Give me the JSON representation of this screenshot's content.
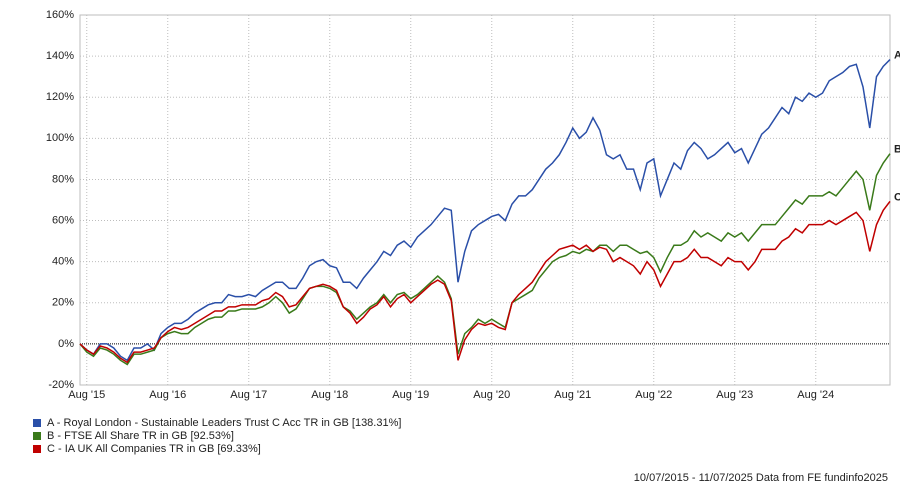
{
  "chart_data": {
    "type": "line",
    "x": [
      "2015-07",
      "2015-08",
      "2015-09",
      "2015-10",
      "2015-11",
      "2015-12",
      "2016-01",
      "2016-02",
      "2016-03",
      "2016-04",
      "2016-05",
      "2016-06",
      "2016-07",
      "2016-08",
      "2016-09",
      "2016-10",
      "2016-11",
      "2016-12",
      "2017-01",
      "2017-02",
      "2017-03",
      "2017-04",
      "2017-05",
      "2017-06",
      "2017-07",
      "2017-08",
      "2017-09",
      "2017-10",
      "2017-11",
      "2017-12",
      "2018-01",
      "2018-02",
      "2018-03",
      "2018-04",
      "2018-05",
      "2018-06",
      "2018-07",
      "2018-08",
      "2018-09",
      "2018-10",
      "2018-11",
      "2018-12",
      "2019-01",
      "2019-02",
      "2019-03",
      "2019-04",
      "2019-05",
      "2019-06",
      "2019-07",
      "2019-08",
      "2019-09",
      "2019-10",
      "2019-11",
      "2019-12",
      "2020-01",
      "2020-02",
      "2020-03",
      "2020-04",
      "2020-05",
      "2020-06",
      "2020-07",
      "2020-08",
      "2020-09",
      "2020-10",
      "2020-11",
      "2020-12",
      "2021-01",
      "2021-02",
      "2021-03",
      "2021-04",
      "2021-05",
      "2021-06",
      "2021-07",
      "2021-08",
      "2021-09",
      "2021-10",
      "2021-11",
      "2021-12",
      "2022-01",
      "2022-02",
      "2022-03",
      "2022-04",
      "2022-05",
      "2022-06",
      "2022-07",
      "2022-08",
      "2022-09",
      "2022-10",
      "2022-11",
      "2022-12",
      "2023-01",
      "2023-02",
      "2023-03",
      "2023-04",
      "2023-05",
      "2023-06",
      "2023-07",
      "2023-08",
      "2023-09",
      "2023-10",
      "2023-11",
      "2023-12",
      "2024-01",
      "2024-02",
      "2024-03",
      "2024-04",
      "2024-05",
      "2024-06",
      "2024-07",
      "2024-08",
      "2024-09",
      "2024-10",
      "2024-11",
      "2024-12",
      "2025-01",
      "2025-02",
      "2025-03",
      "2025-04",
      "2025-05",
      "2025-06",
      "2025-07"
    ],
    "series": [
      {
        "name": "A - Royal London - Sustainable Leaders Trust C Acc TR in GB [138.31%]",
        "label": "A",
        "color": "#2a4fa8",
        "values": [
          0,
          -3,
          -5,
          0,
          0,
          -2,
          -6,
          -8,
          -2,
          -2,
          0,
          -3,
          5,
          8,
          10,
          10,
          12,
          15,
          17,
          19,
          20,
          20,
          24,
          23,
          23,
          24,
          23,
          26,
          28,
          30,
          30,
          27,
          27,
          32,
          38,
          40,
          41,
          38,
          37,
          30,
          30,
          27,
          32,
          36,
          40,
          45,
          43,
          48,
          50,
          47,
          52,
          55,
          58,
          62,
          66,
          65,
          30,
          45,
          55,
          58,
          60,
          62,
          63,
          60,
          68,
          72,
          72,
          75,
          80,
          85,
          88,
          92,
          98,
          105,
          100,
          103,
          110,
          104,
          92,
          90,
          92,
          85,
          85,
          75,
          88,
          90,
          72,
          80,
          88,
          85,
          94,
          98,
          95,
          90,
          92,
          95,
          98,
          93,
          95,
          88,
          95,
          102,
          105,
          110,
          115,
          112,
          120,
          118,
          122,
          120,
          122,
          128,
          130,
          132,
          135,
          136,
          125,
          105,
          130,
          135,
          138.31
        ]
      },
      {
        "name": "B - FTSE All Share TR in GB [92.53%]",
        "label": "B",
        "color": "#3a7a1a",
        "values": [
          0,
          -4,
          -6,
          -2,
          -3,
          -5,
          -8,
          -10,
          -5,
          -5,
          -4,
          -3,
          3,
          5,
          6,
          5,
          5,
          8,
          10,
          12,
          13,
          13,
          16,
          16,
          17,
          17,
          17,
          18,
          20,
          23,
          20,
          15,
          17,
          22,
          27,
          28,
          28,
          27,
          25,
          18,
          16,
          12,
          15,
          18,
          20,
          24,
          20,
          24,
          25,
          22,
          24,
          27,
          30,
          33,
          30,
          22,
          -5,
          5,
          8,
          12,
          10,
          12,
          10,
          8,
          20,
          22,
          24,
          26,
          32,
          36,
          40,
          42,
          43,
          45,
          44,
          46,
          45,
          48,
          48,
          45,
          48,
          48,
          46,
          44,
          45,
          42,
          35,
          42,
          48,
          48,
          50,
          55,
          52,
          54,
          52,
          50,
          54,
          52,
          54,
          50,
          54,
          58,
          58,
          58,
          62,
          66,
          70,
          68,
          72,
          72,
          72,
          74,
          72,
          76,
          80,
          84,
          80,
          65,
          82,
          88,
          92.53
        ]
      },
      {
        "name": "C - IA UK All Companies TR in GB [69.33%]",
        "label": "C",
        "color": "#c00000",
        "values": [
          0,
          -3,
          -5,
          -1,
          -2,
          -4,
          -7,
          -9,
          -4,
          -4,
          -3,
          -2,
          3,
          6,
          8,
          7,
          8,
          10,
          12,
          14,
          16,
          16,
          18,
          18,
          19,
          19,
          19,
          21,
          22,
          25,
          23,
          18,
          19,
          23,
          27,
          28,
          29,
          28,
          26,
          18,
          15,
          10,
          13,
          17,
          19,
          23,
          18,
          22,
          24,
          20,
          23,
          26,
          29,
          31,
          29,
          21,
          -8,
          2,
          7,
          10,
          9,
          10,
          8,
          7,
          20,
          24,
          27,
          30,
          35,
          40,
          43,
          46,
          47,
          48,
          46,
          48,
          45,
          47,
          46,
          40,
          42,
          40,
          38,
          34,
          40,
          36,
          28,
          34,
          40,
          40,
          42,
          46,
          42,
          42,
          40,
          38,
          42,
          40,
          40,
          36,
          40,
          46,
          46,
          46,
          50,
          52,
          56,
          54,
          58,
          58,
          58,
          60,
          58,
          60,
          62,
          64,
          60,
          45,
          58,
          65,
          69.33
        ]
      }
    ],
    "xlim": [
      "2015-07",
      "2025-07"
    ],
    "xticks": [
      {
        "value": "2015-08",
        "label": "Aug '15"
      },
      {
        "value": "2016-08",
        "label": "Aug '16"
      },
      {
        "value": "2017-08",
        "label": "Aug '17"
      },
      {
        "value": "2018-08",
        "label": "Aug '18"
      },
      {
        "value": "2019-08",
        "label": "Aug '19"
      },
      {
        "value": "2020-08",
        "label": "Aug '20"
      },
      {
        "value": "2021-08",
        "label": "Aug '21"
      },
      {
        "value": "2022-08",
        "label": "Aug '22"
      },
      {
        "value": "2023-08",
        "label": "Aug '23"
      },
      {
        "value": "2024-08",
        "label": "Aug '24"
      }
    ],
    "ylim": [
      -20,
      160
    ],
    "yticks": [
      {
        "value": -20,
        "label": "-20%"
      },
      {
        "value": 0,
        "label": "0%"
      },
      {
        "value": 20,
        "label": "20%"
      },
      {
        "value": 40,
        "label": "40%"
      },
      {
        "value": 60,
        "label": "60%"
      },
      {
        "value": 80,
        "label": "80%"
      },
      {
        "value": 100,
        "label": "100%"
      },
      {
        "value": 120,
        "label": "120%"
      },
      {
        "value": 140,
        "label": "140%"
      },
      {
        "value": 160,
        "label": "160%"
      }
    ],
    "grid": true,
    "source": "10/07/2015 - 11/07/2025 Data from FE fundinfo2025"
  }
}
